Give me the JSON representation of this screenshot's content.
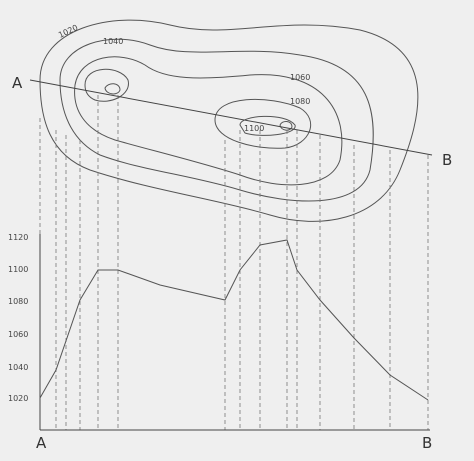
{
  "map": {
    "line_start": "A",
    "line_end": "B",
    "contour_labels": [
      "1020",
      "1040",
      "1060",
      "1080",
      "1100"
    ]
  },
  "profile": {
    "axis_labels": [
      "1120",
      "1100",
      "1080",
      "1060",
      "1040",
      "1020"
    ],
    "start": "A",
    "end": "B"
  }
}
